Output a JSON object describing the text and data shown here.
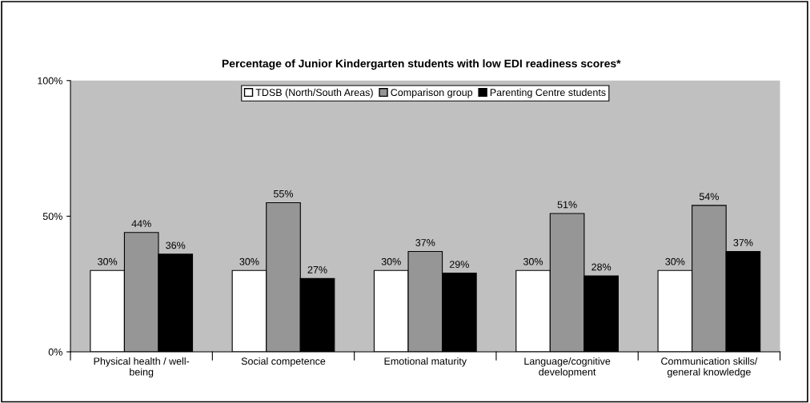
{
  "chart_data": {
    "type": "bar",
    "title": "Percentage of Junior Kindergarten students with low EDI readiness scores*",
    "categories": [
      "Physical health / well-\nbeing",
      "Social competence",
      "Emotional maturity",
      "Language/cognitive\ndevelopment",
      "Communication skills/\ngeneral knowledge"
    ],
    "series": [
      {
        "name": "TDSB (North/South Areas)",
        "color": "#ffffff",
        "values": [
          30,
          30,
          30,
          30,
          30
        ],
        "value_labels": [
          "30%",
          "30%",
          "30%",
          "30%",
          "30%"
        ]
      },
      {
        "name": "Comparison group",
        "color": "#969696",
        "values": [
          44,
          55,
          37,
          51,
          54
        ],
        "value_labels": [
          "44%",
          "55%",
          "37%",
          "51%",
          "54%"
        ]
      },
      {
        "name": "Parenting Centre students",
        "color": "#000000",
        "values": [
          36,
          27,
          29,
          28,
          37
        ],
        "value_labels": [
          "36%",
          "27%",
          "29%",
          "28%",
          "37%"
        ]
      }
    ],
    "ylim": [
      0,
      100
    ],
    "yticks": [
      {
        "value": 0,
        "label": "0%"
      },
      {
        "value": 50,
        "label": "50%"
      },
      {
        "value": 100,
        "label": "100%"
      }
    ],
    "grid": false,
    "legend": "top"
  }
}
